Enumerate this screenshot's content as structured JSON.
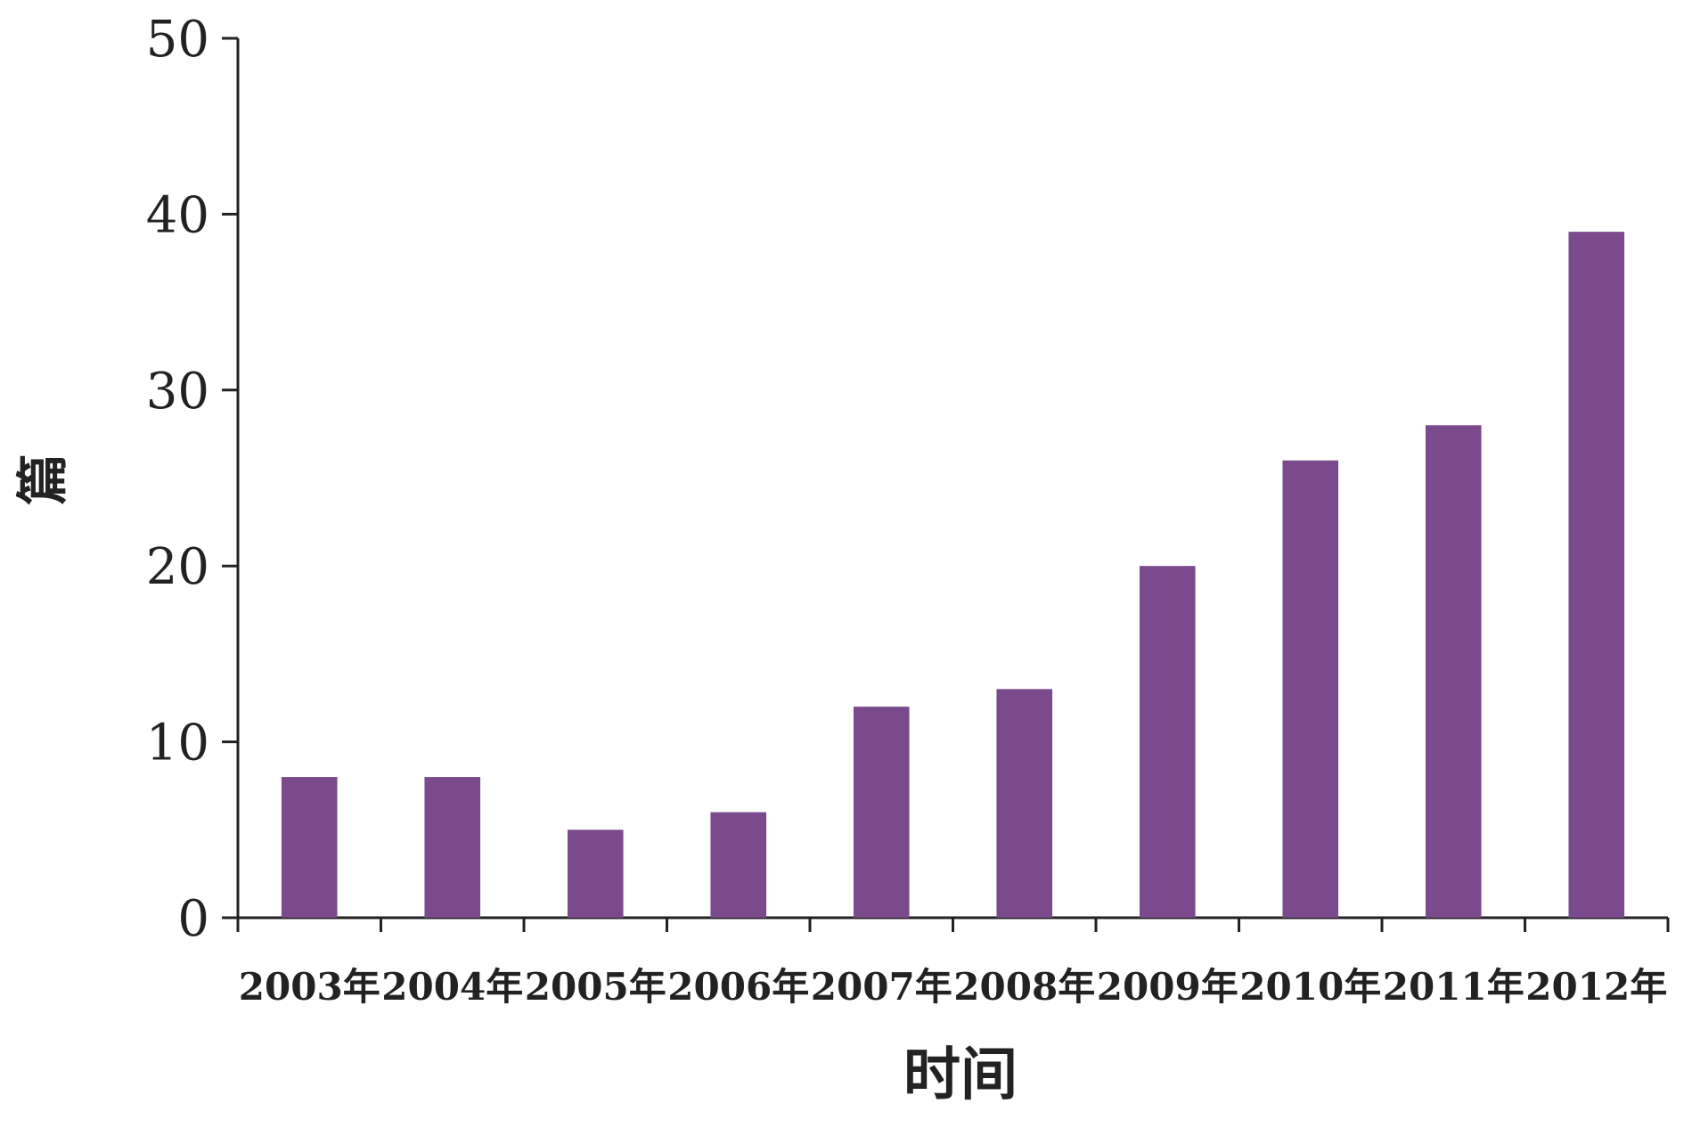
{
  "chart_data": {
    "type": "bar",
    "categories": [
      "2003年",
      "2004年",
      "2005年",
      "2006年",
      "2007年",
      "2008年",
      "2009年",
      "2010年",
      "2011年",
      "2012年"
    ],
    "values": [
      8,
      8,
      5,
      6,
      12,
      13,
      20,
      26,
      28,
      39
    ],
    "xlabel": "时间",
    "ylabel": "篇",
    "ylim": [
      0,
      50
    ],
    "yticks": [
      0,
      10,
      20,
      30,
      40,
      50
    ],
    "bar_color": "#7a4a8c",
    "grid": false,
    "legend": "none"
  }
}
